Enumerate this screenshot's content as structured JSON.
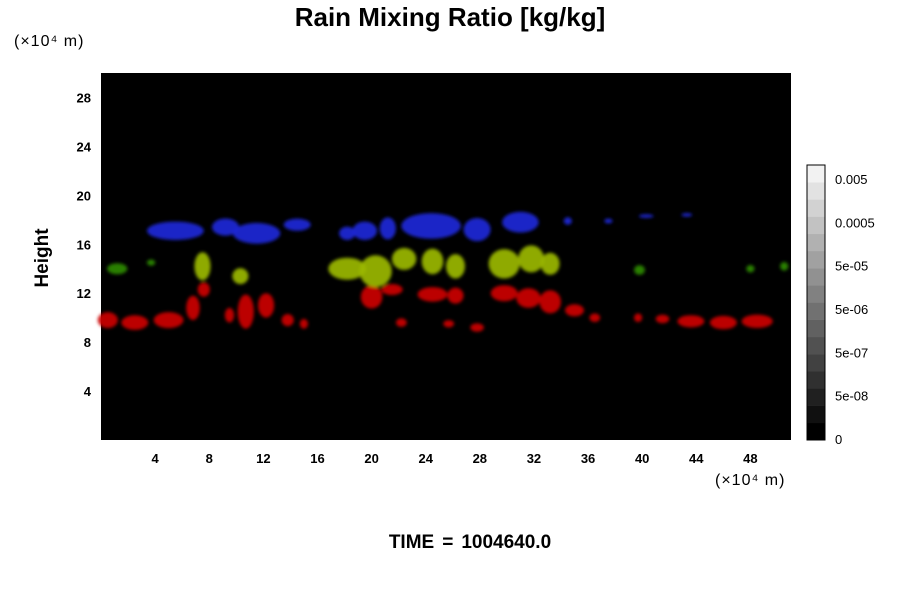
{
  "chart_data": {
    "type": "heatmap",
    "title": "Rain Mixing Ratio [kg/kg]",
    "ylabel": "Height",
    "x_unit": "(×10⁴ m)",
    "y_unit": "(×10⁴ m)",
    "x_ticks": [
      "4",
      "8",
      "12",
      "16",
      "20",
      "24",
      "28",
      "32",
      "36",
      "40",
      "44",
      "48"
    ],
    "y_ticks": [
      "4",
      "8",
      "12",
      "16",
      "20",
      "24",
      "28"
    ],
    "xlim": [
      0,
      51
    ],
    "ylim": [
      0,
      30
    ],
    "background": "#000000",
    "layers": [
      {
        "color": "#cc0000",
        "blobs": [
          {
            "x": 0.5,
            "y": 9.8,
            "w": 1.5,
            "h": 1.3
          },
          {
            "x": 2.5,
            "y": 9.6,
            "w": 2.0,
            "h": 1.2
          },
          {
            "x": 5.0,
            "y": 9.8,
            "w": 2.2,
            "h": 1.3
          },
          {
            "x": 6.8,
            "y": 10.8,
            "w": 1.0,
            "h": 2.0
          },
          {
            "x": 7.6,
            "y": 12.3,
            "w": 0.9,
            "h": 1.2
          },
          {
            "x": 9.5,
            "y": 10.2,
            "w": 0.7,
            "h": 1.2
          },
          {
            "x": 10.7,
            "y": 10.5,
            "w": 1.2,
            "h": 2.8
          },
          {
            "x": 12.2,
            "y": 11.0,
            "w": 1.2,
            "h": 2.0
          },
          {
            "x": 13.8,
            "y": 9.8,
            "w": 0.9,
            "h": 1.0
          },
          {
            "x": 15.0,
            "y": 9.5,
            "w": 0.6,
            "h": 0.8
          },
          {
            "x": 20.0,
            "y": 11.7,
            "w": 1.6,
            "h": 1.9
          },
          {
            "x": 21.5,
            "y": 12.3,
            "w": 1.6,
            "h": 0.9
          },
          {
            "x": 22.2,
            "y": 9.6,
            "w": 0.8,
            "h": 0.7
          },
          {
            "x": 24.5,
            "y": 11.9,
            "w": 2.2,
            "h": 1.2
          },
          {
            "x": 26.2,
            "y": 11.8,
            "w": 1.2,
            "h": 1.3
          },
          {
            "x": 25.7,
            "y": 9.5,
            "w": 0.8,
            "h": 0.6
          },
          {
            "x": 27.8,
            "y": 9.2,
            "w": 1.0,
            "h": 0.7
          },
          {
            "x": 29.8,
            "y": 12.0,
            "w": 2.0,
            "h": 1.3
          },
          {
            "x": 31.6,
            "y": 11.6,
            "w": 1.8,
            "h": 1.6
          },
          {
            "x": 33.2,
            "y": 11.3,
            "w": 1.6,
            "h": 1.9
          },
          {
            "x": 35.0,
            "y": 10.6,
            "w": 1.4,
            "h": 1.0
          },
          {
            "x": 36.5,
            "y": 10.0,
            "w": 0.8,
            "h": 0.7
          },
          {
            "x": 39.7,
            "y": 10.0,
            "w": 0.6,
            "h": 0.7
          },
          {
            "x": 41.5,
            "y": 9.9,
            "w": 1.0,
            "h": 0.7
          },
          {
            "x": 43.6,
            "y": 9.7,
            "w": 2.0,
            "h": 1.0
          },
          {
            "x": 46.0,
            "y": 9.6,
            "w": 2.0,
            "h": 1.1
          },
          {
            "x": 48.5,
            "y": 9.7,
            "w": 2.3,
            "h": 1.1
          }
        ]
      },
      {
        "color": "#9bb800",
        "blobs": [
          {
            "x": 7.5,
            "y": 14.2,
            "w": 1.2,
            "h": 2.3
          },
          {
            "x": 10.3,
            "y": 13.4,
            "w": 1.2,
            "h": 1.3
          },
          {
            "x": 18.2,
            "y": 14.0,
            "w": 2.8,
            "h": 1.8
          },
          {
            "x": 20.3,
            "y": 13.8,
            "w": 2.4,
            "h": 2.6
          },
          {
            "x": 22.4,
            "y": 14.8,
            "w": 1.8,
            "h": 1.8
          },
          {
            "x": 24.5,
            "y": 14.6,
            "w": 1.6,
            "h": 2.1
          },
          {
            "x": 26.2,
            "y": 14.2,
            "w": 1.4,
            "h": 2.0
          },
          {
            "x": 29.8,
            "y": 14.4,
            "w": 2.3,
            "h": 2.4
          },
          {
            "x": 31.8,
            "y": 14.8,
            "w": 1.9,
            "h": 2.2
          },
          {
            "x": 33.2,
            "y": 14.4,
            "w": 1.4,
            "h": 1.8
          }
        ]
      },
      {
        "color": "#2c8a00",
        "blobs": [
          {
            "x": 1.2,
            "y": 14.0,
            "w": 1.5,
            "h": 0.9
          },
          {
            "x": 3.7,
            "y": 14.5,
            "w": 0.6,
            "h": 0.5
          },
          {
            "x": 39.8,
            "y": 13.9,
            "w": 0.8,
            "h": 0.8
          },
          {
            "x": 48.0,
            "y": 14.0,
            "w": 0.6,
            "h": 0.6
          },
          {
            "x": 50.5,
            "y": 14.2,
            "w": 0.6,
            "h": 0.7
          }
        ]
      },
      {
        "color": "#1e28d8",
        "blobs": [
          {
            "x": 5.5,
            "y": 17.1,
            "w": 4.2,
            "h": 1.5
          },
          {
            "x": 9.2,
            "y": 17.4,
            "w": 2.0,
            "h": 1.4
          },
          {
            "x": 11.5,
            "y": 16.9,
            "w": 3.5,
            "h": 1.7
          },
          {
            "x": 14.5,
            "y": 17.6,
            "w": 2.0,
            "h": 1.0
          },
          {
            "x": 18.2,
            "y": 16.9,
            "w": 1.2,
            "h": 1.1
          },
          {
            "x": 19.5,
            "y": 17.1,
            "w": 1.8,
            "h": 1.5
          },
          {
            "x": 21.2,
            "y": 17.3,
            "w": 1.2,
            "h": 1.8
          },
          {
            "x": 24.4,
            "y": 17.5,
            "w": 4.4,
            "h": 2.1
          },
          {
            "x": 27.8,
            "y": 17.2,
            "w": 2.0,
            "h": 1.9
          },
          {
            "x": 31.0,
            "y": 17.8,
            "w": 2.7,
            "h": 1.7
          },
          {
            "x": 34.5,
            "y": 17.9,
            "w": 0.6,
            "h": 0.6
          },
          {
            "x": 37.5,
            "y": 17.9,
            "w": 0.6,
            "h": 0.4
          },
          {
            "x": 40.3,
            "y": 18.3,
            "w": 1.1,
            "h": 0.3
          },
          {
            "x": 43.3,
            "y": 18.4,
            "w": 0.8,
            "h": 0.3
          }
        ]
      }
    ],
    "colorbar": {
      "labels": [
        "0",
        "5e-08",
        "5e-07",
        "5e-06",
        "5e-05",
        "0.0005",
        "0.005"
      ],
      "levels": 16,
      "color_low": "#000000",
      "color_high": "#f2f2f2"
    }
  },
  "footer": {
    "time_label": "TIME",
    "time_equals": "=",
    "time_value": "1004640.0"
  }
}
